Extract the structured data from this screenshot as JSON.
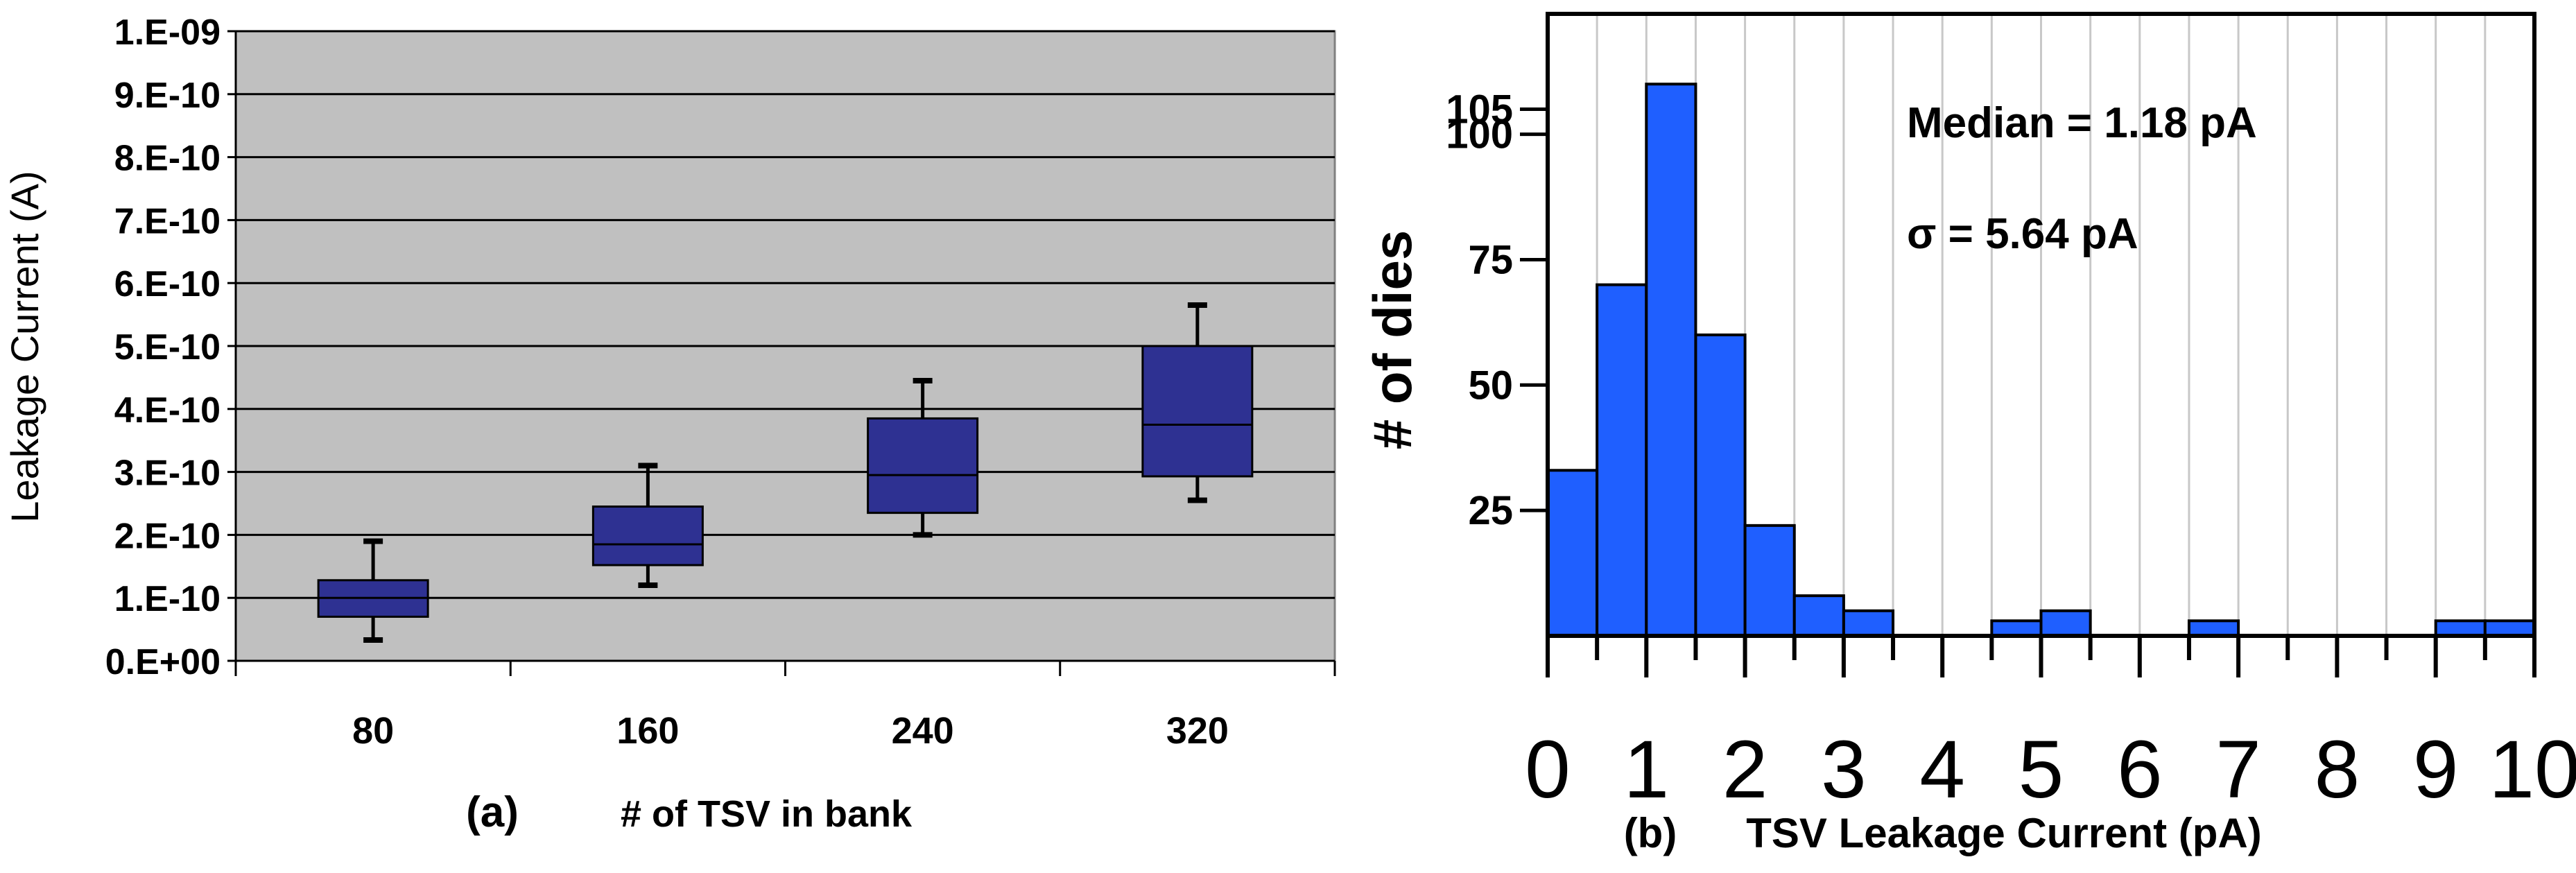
{
  "chart_data": [
    {
      "type": "box",
      "panel_label": "(a)",
      "xlabel": "# of TSV in bank",
      "ylabel": "Leakage Current (A)",
      "ylim": [
        0,
        1e-09
      ],
      "y_ticks": [
        0,
        1e-10,
        2e-10,
        3e-10,
        4e-10,
        5e-10,
        6e-10,
        7e-10,
        8e-10,
        9e-10,
        1e-09
      ],
      "y_tick_labels": [
        "0.E+00",
        "1.E-10",
        "2.E-10",
        "3.E-10",
        "4.E-10",
        "5.E-10",
        "6.E-10",
        "7.E-10",
        "8.E-10",
        "9.E-10",
        "1.E-09"
      ],
      "categories": [
        "80",
        "160",
        "240",
        "320"
      ],
      "boxes": [
        {
          "min": 3.3e-11,
          "q1": 7e-11,
          "median": 1e-10,
          "q3": 1.28e-10,
          "max": 1.9e-10
        },
        {
          "min": 1.2e-10,
          "q1": 1.52e-10,
          "median": 1.85e-10,
          "q3": 2.45e-10,
          "max": 3.1e-10
        },
        {
          "min": 2e-10,
          "q1": 2.35e-10,
          "median": 2.95e-10,
          "q3": 3.85e-10,
          "max": 4.45e-10
        },
        {
          "min": 2.55e-10,
          "q1": 2.93e-10,
          "median": 3.75e-10,
          "q3": 5e-10,
          "max": 5.65e-10
        }
      ],
      "grid": true,
      "colors": {
        "plot_bg": "#c0c0c0",
        "box_fill": "#2e3192",
        "grid": "#000000"
      }
    },
    {
      "type": "histogram",
      "panel_label": "(b)",
      "xlabel": "TSV Leakage Current (pA)",
      "ylabel": "# of dies",
      "xlim": [
        0,
        10
      ],
      "ylim": [
        0,
        124
      ],
      "x_ticks": [
        0,
        1,
        2,
        3,
        4,
        5,
        6,
        7,
        8,
        9,
        10
      ],
      "y_ticks": [
        25,
        50,
        75,
        100,
        105
      ],
      "bin_width": 0.5,
      "bin_starts": [
        0,
        0.5,
        1,
        1.5,
        2,
        2.5,
        3,
        3.5,
        4,
        4.5,
        5,
        5.5,
        6,
        6.5,
        7,
        7.5,
        8,
        8.5,
        9,
        9.5
      ],
      "counts": [
        33,
        70,
        110,
        60,
        22,
        8,
        5,
        0,
        0,
        3,
        5,
        0,
        0,
        3,
        0,
        0,
        0,
        0,
        3,
        3
      ],
      "annotations": [
        "Median = 1.18 pA",
        "σ = 5.64 pA"
      ],
      "colors": {
        "bar_fill": "#1f5fff",
        "bar_edge": "#000000",
        "grid": "#c8c8c8"
      }
    }
  ]
}
